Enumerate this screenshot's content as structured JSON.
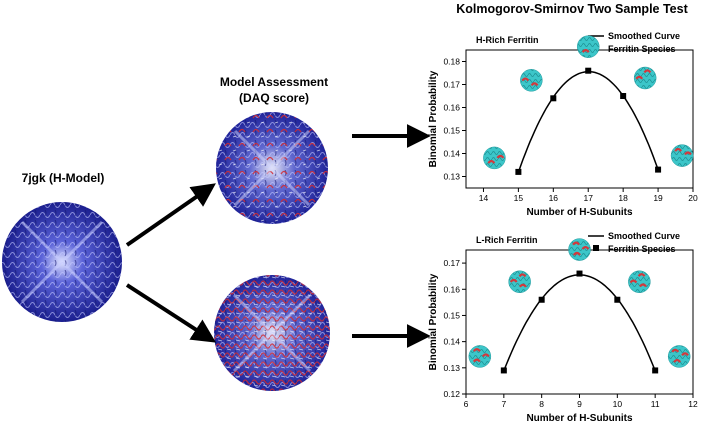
{
  "main_title": "Kolmogorov-Smirnov Two Sample Test",
  "model_label": "7jgk (H-Model)",
  "assessment_label_line1": "Model Assessment",
  "assessment_label_line2": "(DAQ score)",
  "colors": {
    "protein_blue": "#2a2fb0",
    "protein_red": "#c8202a",
    "h_subunit_teal": "#3cc6c9",
    "l_subunit_red": "#d2393d",
    "curve": "#000000"
  },
  "chart_data": [
    {
      "type": "scatter",
      "title": "H-Rich Ferritin",
      "xlabel": "Number of H-Subunits",
      "ylabel": "Binomial Probability",
      "xlim": [
        13.5,
        20
      ],
      "ylim": [
        0.125,
        0.185
      ],
      "xticks": [
        14,
        15,
        16,
        17,
        18,
        19,
        20
      ],
      "yticks": [
        0.13,
        0.14,
        0.15,
        0.16,
        0.17,
        0.18
      ],
      "xtick_labels": [
        "14",
        "15",
        "16",
        "17",
        "18",
        "19",
        "20"
      ],
      "ytick_labels": [
        "0.13",
        "0.14",
        "0.15",
        "0.16",
        "0.17",
        "0.18"
      ],
      "legend": [
        "Smoothed Curve",
        "Ferritin Species"
      ],
      "legend_position": "top-right",
      "series": [
        {
          "name": "Ferritin Species",
          "x": [
            15,
            16,
            17,
            18,
            19
          ],
          "y": [
            0.132,
            0.164,
            0.176,
            0.165,
            0.133
          ]
        }
      ]
    },
    {
      "type": "scatter",
      "title": "L-Rich Ferritin",
      "xlabel": "Number of H-Subunits",
      "ylabel": "Binomial Probability",
      "xlim": [
        6,
        12
      ],
      "ylim": [
        0.12,
        0.175
      ],
      "xticks": [
        6,
        7,
        8,
        9,
        10,
        11,
        12
      ],
      "yticks": [
        0.12,
        0.13,
        0.14,
        0.15,
        0.16,
        0.17
      ],
      "xtick_labels": [
        "6",
        "7",
        "8",
        "9",
        "10",
        "11",
        "12"
      ],
      "ytick_labels": [
        "0.12",
        "0.13",
        "0.14",
        "0.15",
        "0.16",
        "0.17"
      ],
      "legend": [
        "Smoothed Curve",
        "Ferritin Species"
      ],
      "legend_position": "top-right",
      "series": [
        {
          "name": "Ferritin Species",
          "x": [
            7,
            8,
            9,
            10,
            11
          ],
          "y": [
            0.129,
            0.156,
            0.166,
            0.156,
            0.129
          ]
        }
      ]
    }
  ]
}
